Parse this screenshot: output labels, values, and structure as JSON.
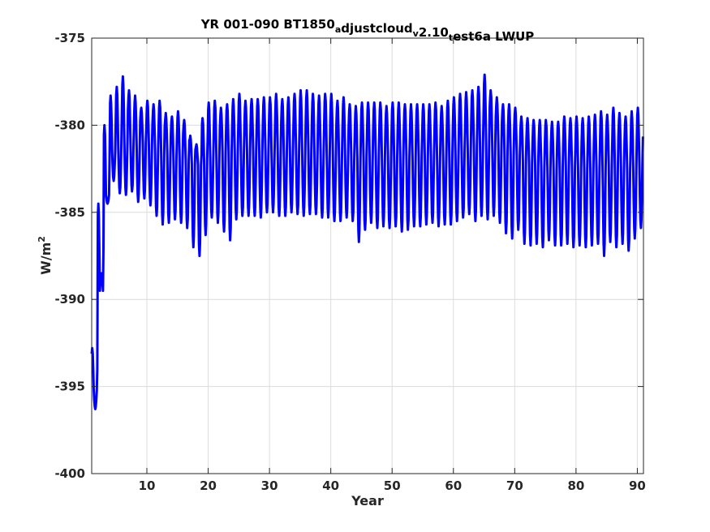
{
  "chart_data": {
    "type": "line",
    "title": {
      "parts": [
        {
          "text": "YR 001-090 BT1850",
          "sub": false
        },
        {
          "text": "a",
          "sub": true
        },
        {
          "text": "djustcloud",
          "sub": false
        },
        {
          "text": "v",
          "sub": true
        },
        {
          "text": "2.10",
          "sub": false
        },
        {
          "text": "t",
          "sub": true
        },
        {
          "text": "est6a LWUP",
          "sub": false
        }
      ]
    },
    "xlabel": "Year",
    "ylabel": {
      "base": "W/m",
      "sup": "2"
    },
    "xlim": [
      1,
      91
    ],
    "ylim": [
      -400,
      -375
    ],
    "xticks": [
      10,
      20,
      30,
      40,
      50,
      60,
      70,
      80,
      90
    ],
    "yticks": [
      -400,
      -395,
      -390,
      -385,
      -380,
      -375
    ],
    "grid": true,
    "line_color": "#0000ff",
    "series": [
      {
        "monthly_resolution": 12,
        "annual_mean": [
          -395.2,
          -389.5,
          -384.0,
          -381.5,
          -381.2,
          -381.0,
          -381.1,
          -381.2,
          -381.0,
          -381.2,
          -381.4,
          -381.5,
          -381.7,
          -381.8,
          -381.8,
          -382.0,
          -382.2,
          -382.3,
          -382.0,
          -381.8,
          -381.6,
          -381.6,
          -381.5,
          -381.5,
          -381.5,
          -381.4,
          -381.5,
          -381.5,
          -381.4,
          -381.5,
          -381.4,
          -381.5,
          -381.4,
          -381.5,
          -381.5,
          -381.4,
          -381.6,
          -381.5,
          -381.5,
          -381.6,
          -381.7,
          -381.7,
          -381.8,
          -381.9,
          -381.8,
          -381.8,
          -381.7,
          -381.8,
          -381.9,
          -381.8,
          -381.8,
          -381.8,
          -381.9,
          -381.8,
          -381.8,
          -381.7,
          -381.8,
          -381.9,
          -381.7,
          -381.6,
          -381.4,
          -381.3,
          -381.2,
          -381.0,
          -380.9,
          -381.0,
          -381.2,
          -381.5,
          -381.6,
          -381.7,
          -382.0,
          -382.2,
          -382.3,
          -382.4,
          -382.4,
          -382.5,
          -382.4,
          -382.3,
          -382.4,
          -382.4,
          -382.5,
          -382.5,
          -382.4,
          -382.4,
          -382.3,
          -382.3,
          -382.4,
          -382.5,
          -382.4,
          -382.3
        ],
        "seasonal_max": [
          -392.8,
          -384.5,
          -380.0,
          -378.3,
          -377.8,
          -377.2,
          -378.0,
          -378.3,
          -379.0,
          -378.6,
          -378.8,
          -378.6,
          -379.3,
          -379.5,
          -379.2,
          -379.7,
          -380.6,
          -381.1,
          -379.6,
          -378.7,
          -378.6,
          -379.0,
          -378.8,
          -378.5,
          -378.2,
          -378.6,
          -378.5,
          -378.5,
          -378.4,
          -378.4,
          -378.2,
          -378.5,
          -378.4,
          -378.2,
          -378.0,
          -378.0,
          -378.2,
          -378.3,
          -378.2,
          -378.2,
          -378.6,
          -378.4,
          -378.8,
          -378.9,
          -378.7,
          -378.7,
          -378.7,
          -378.7,
          -378.9,
          -378.7,
          -378.7,
          -378.8,
          -378.8,
          -378.8,
          -378.8,
          -378.8,
          -378.7,
          -378.9,
          -378.6,
          -378.4,
          -378.2,
          -378.1,
          -378.0,
          -377.8,
          -377.1,
          -378.0,
          -378.4,
          -378.8,
          -378.8,
          -379.0,
          -379.5,
          -379.6,
          -379.7,
          -379.7,
          -379.7,
          -379.8,
          -379.8,
          -379.5,
          -379.6,
          -379.5,
          -379.6,
          -379.5,
          -379.4,
          -379.2,
          -379.4,
          -379.0,
          -379.3,
          -379.5,
          -379.2,
          -379.0
        ],
        "seasonal_min": [
          -396.3,
          -388.5,
          -384.5,
          -383.2,
          -383.9,
          -384.0,
          -383.8,
          -384.4,
          -384.2,
          -384.6,
          -385.2,
          -385.7,
          -385.6,
          -385.4,
          -385.6,
          -385.9,
          -387.0,
          -387.5,
          -386.3,
          -385.3,
          -385.6,
          -386.1,
          -386.6,
          -385.4,
          -385.2,
          -385.2,
          -385.2,
          -385.3,
          -385.0,
          -385.0,
          -385.2,
          -385.2,
          -385.0,
          -385.1,
          -385.2,
          -385.1,
          -385.1,
          -385.3,
          -385.3,
          -385.5,
          -385.5,
          -385.3,
          -385.5,
          -386.7,
          -386.0,
          -385.6,
          -385.9,
          -385.8,
          -385.9,
          -385.8,
          -386.1,
          -386.0,
          -385.8,
          -385.8,
          -385.7,
          -385.6,
          -385.8,
          -385.7,
          -385.7,
          -385.5,
          -385.3,
          -385.1,
          -385.5,
          -385.2,
          -385.4,
          -385.2,
          -385.6,
          -386.2,
          -386.5,
          -386.0,
          -386.8,
          -386.9,
          -386.8,
          -387.0,
          -386.6,
          -386.9,
          -386.9,
          -386.8,
          -387.0,
          -386.9,
          -387.0,
          -386.9,
          -386.8,
          -387.5,
          -386.7,
          -387.0,
          -386.8,
          -387.2,
          -386.5,
          -385.9
        ]
      }
    ]
  }
}
